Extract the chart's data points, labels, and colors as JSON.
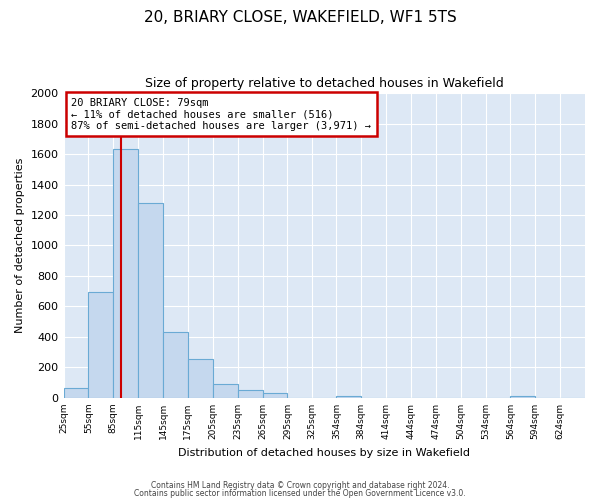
{
  "title": "20, BRIARY CLOSE, WAKEFIELD, WF1 5TS",
  "subtitle": "Size of property relative to detached houses in Wakefield",
  "xlabel": "Distribution of detached houses by size in Wakefield",
  "ylabel": "Number of detached properties",
  "bar_labels": [
    "25sqm",
    "55sqm",
    "85sqm",
    "115sqm",
    "145sqm",
    "175sqm",
    "205sqm",
    "235sqm",
    "265sqm",
    "295sqm",
    "325sqm",
    "354sqm",
    "384sqm",
    "414sqm",
    "444sqm",
    "474sqm",
    "504sqm",
    "534sqm",
    "564sqm",
    "594sqm",
    "624sqm"
  ],
  "bar_values": [
    65,
    695,
    1635,
    1280,
    435,
    255,
    90,
    50,
    30,
    0,
    0,
    15,
    0,
    0,
    0,
    0,
    0,
    0,
    15,
    0,
    0
  ],
  "bar_color": "#c5d8ee",
  "bar_edge_color": "#6aaad4",
  "property_line_x": 79,
  "bin_edges": [
    10,
    40,
    70,
    100,
    130,
    160,
    190,
    220,
    250,
    280,
    310,
    339,
    369,
    399,
    429,
    459,
    489,
    519,
    549,
    579,
    609,
    639
  ],
  "ylim": [
    0,
    2000
  ],
  "yticks": [
    0,
    200,
    400,
    600,
    800,
    1000,
    1200,
    1400,
    1600,
    1800,
    2000
  ],
  "annotation_line1": "20 BRIARY CLOSE: 79sqm",
  "annotation_line2": "← 11% of detached houses are smaller (516)",
  "annotation_line3": "87% of semi-detached houses are larger (3,971) →",
  "annotation_box_color": "#ffffff",
  "annotation_box_edgecolor": "#cc0000",
  "footer_line1": "Contains HM Land Registry data © Crown copyright and database right 2024.",
  "footer_line2": "Contains public sector information licensed under the Open Government Licence v3.0.",
  "bg_color": "#ffffff",
  "plot_bg_color": "#dde8f5",
  "grid_color": "#ffffff",
  "red_line_color": "#cc0000"
}
